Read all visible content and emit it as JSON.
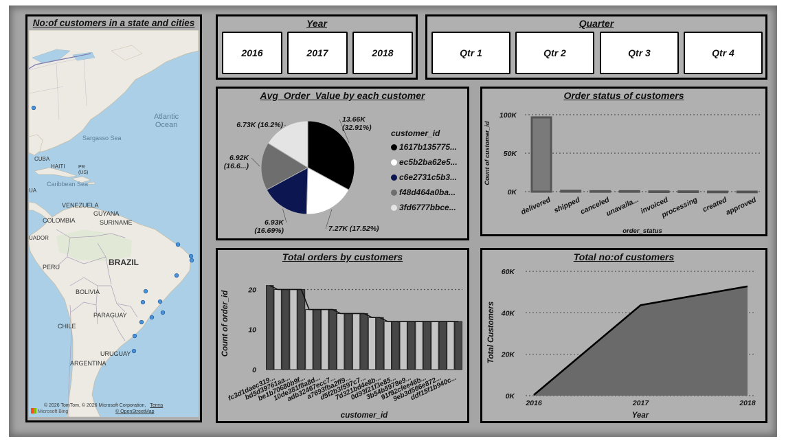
{
  "map_card": {
    "title": "No:of customers in a state and cities",
    "labels": {
      "atlantic": "Atlantic\nOcean",
      "sargasso": "Sargasso Sea",
      "cuba": "CUBA",
      "haiti": "HAITI",
      "pr": "PR\n(US)",
      "caribbean": "Caribbean Sea",
      "ua": "UA",
      "venezuela": "VENEZUELA",
      "guyana": "GUYANA",
      "colombia": "COLOMBIA",
      "suriname": "SURINAME",
      "ecuador": "UADOR",
      "brazil": "BRAZIL",
      "peru": "PERU",
      "bolivia": "BOLIVIA",
      "paraguay": "PARAGUAY",
      "chile": "CHILE",
      "uruguay": "URUGUAY",
      "argentina": "ARGENTINA"
    },
    "attribution": "© 2026 TomTom, © 2026 Microsoft Corporation,",
    "terms_link": "Terms",
    "osm_link": "© OpenStreetMap",
    "bing_logo": "Microsoft Bing"
  },
  "year_slicer": {
    "title": "Year",
    "items": [
      "2016",
      "2017",
      "2018"
    ]
  },
  "quarter_slicer": {
    "title": "Quarter",
    "items": [
      "Qtr 1",
      "Qtr 2",
      "Qtr 3",
      "Qtr 4"
    ]
  },
  "pie_card": {
    "title": "Avg_Order_Value by each customer"
  },
  "status_card": {
    "title": "Order status of customers"
  },
  "orders_card": {
    "title": "Total orders by customers"
  },
  "total_card": {
    "title": "Total no:of customers"
  },
  "chart_data": [
    {
      "type": "pie",
      "title": "Avg_Order_Value by each customer",
      "legend_title": "customer_id",
      "legend_placement": "right",
      "slices": [
        {
          "name": "1617b135775...",
          "value": 13.66,
          "label": "13.66K\n(32.91%)",
          "color": "#000000"
        },
        {
          "name": "ec5b2ba62e5...",
          "value": 7.27,
          "label": "7.27K (17.52%)",
          "color": "#ffffff"
        },
        {
          "name": "c6e2731c5b3...",
          "value": 6.93,
          "label": "6.93K\n(16.69%)",
          "color": "#0c1650"
        },
        {
          "name": "f48d464a0ba...",
          "value": 6.92,
          "label": "6.92K\n(16.6...)",
          "color": "#6e6e6e"
        },
        {
          "name": "3fd6777bbce...",
          "value": 6.73,
          "label": "6.73K (16.2%)",
          "color": "#e4e4e4"
        }
      ]
    },
    {
      "type": "bar",
      "title": "Order status of customers",
      "xlabel": "order_status",
      "ylabel": "Count of customer_id",
      "categories": [
        "delivered",
        "shipped",
        "canceled",
        "unavaila...",
        "invoiced",
        "processing",
        "created",
        "approved"
      ],
      "values": [
        96500,
        1100,
        600,
        600,
        300,
        300,
        5,
        2
      ],
      "yticks": [
        "0K",
        "50K",
        "100K"
      ],
      "ylim": [
        0,
        100000
      ],
      "grid": true
    },
    {
      "type": "bar",
      "title": "Total orders by customers",
      "xlabel": "customer_id",
      "ylabel": "Count of order_id",
      "categories": [
        "fc3d1daec319...",
        "bd5d39761aa...",
        "be1b70680b9f...",
        "10de381f8a8d...",
        "adb32467ecc7...",
        "a7693fba2ff9...",
        "d5f2b3f597c7...",
        "7d321bd4e8b...",
        "0d93f21f3e85...",
        "3b54b5978e9...",
        "91f92cfee46b...",
        "9eb3d566e872...",
        "ddf15f1b940c..."
      ],
      "values": [
        21,
        20,
        20,
        15,
        15,
        14,
        14,
        13,
        12,
        12,
        12,
        12,
        12
      ],
      "yticks": [
        "0",
        "10",
        "20"
      ],
      "ylim": [
        0,
        23
      ],
      "grid": true
    },
    {
      "type": "area",
      "title": "Total no:of customers",
      "xlabel": "Year",
      "ylabel": "Total Customers",
      "x": [
        "2016",
        "2017",
        "2018"
      ],
      "values": [
        329,
        43700,
        52750
      ],
      "yticks": [
        "0K",
        "20K",
        "40K",
        "60K"
      ],
      "ylim": [
        0,
        60000
      ],
      "grid": true
    }
  ],
  "colors": {
    "background": "#a5a5a5",
    "card": "#b0b0b0",
    "border": "#000000",
    "bar_dark": "#474747",
    "bar_light": "#c4c4c4",
    "area_fill": "#6a6a6a"
  }
}
